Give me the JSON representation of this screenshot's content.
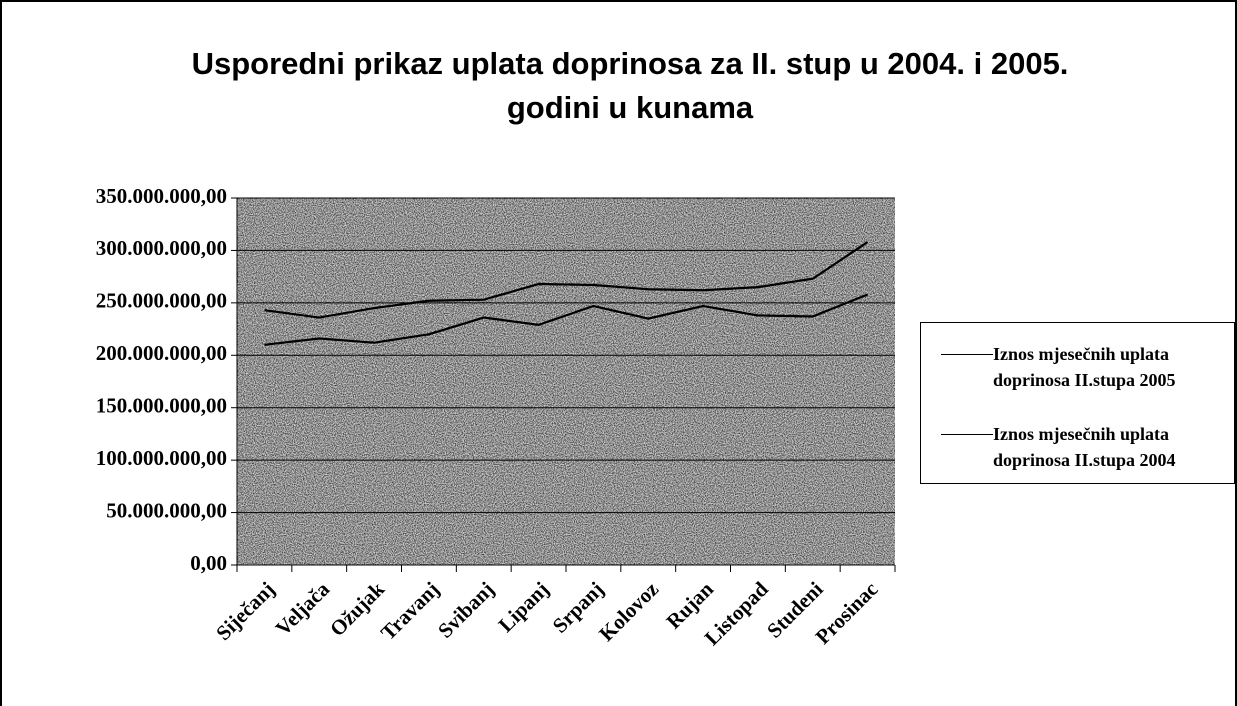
{
  "chart_data": {
    "type": "line",
    "title": "Usporedni prikaz uplata doprinosa za II. stup u 2004. i 2005. godini u kunama",
    "categories": [
      "Siječanj",
      "Veljača",
      "Ožujak",
      "Travanj",
      "Svibanj",
      "Lipanj",
      "Srpanj",
      "Kolovoz",
      "Rujan",
      "Listopad",
      "Studeni",
      "Prosinac"
    ],
    "series": [
      {
        "name": "Iznos mjesečnih uplata doprinosa II.stupa 2005",
        "color": "#000000",
        "values": [
          243000000,
          236000000,
          245000000,
          252000000,
          253000000,
          268000000,
          267000000,
          263000000,
          262000000,
          265000000,
          273000000,
          308000000
        ]
      },
      {
        "name": "Iznos mjesečnih uplata doprinosa II.stupa 2004",
        "color": "#000000",
        "values": [
          210000000,
          216000000,
          212000000,
          220000000,
          236000000,
          229000000,
          247000000,
          235000000,
          247000000,
          238000000,
          237000000,
          258000000
        ]
      }
    ],
    "ylim": [
      0,
      350000000
    ],
    "yticks": [
      {
        "value": 0,
        "label": "0,00"
      },
      {
        "value": 50000000,
        "label": "50.000.000,00"
      },
      {
        "value": 100000000,
        "label": "100.000.000,00"
      },
      {
        "value": 150000000,
        "label": "150.000.000,00"
      },
      {
        "value": 200000000,
        "label": "200.000.000,00"
      },
      {
        "value": 250000000,
        "label": "250.000.000,00"
      },
      {
        "value": 300000000,
        "label": "300.000.000,00"
      },
      {
        "value": 350000000,
        "label": "350.000.000,00"
      }
    ],
    "grid": true,
    "legend": "right"
  }
}
